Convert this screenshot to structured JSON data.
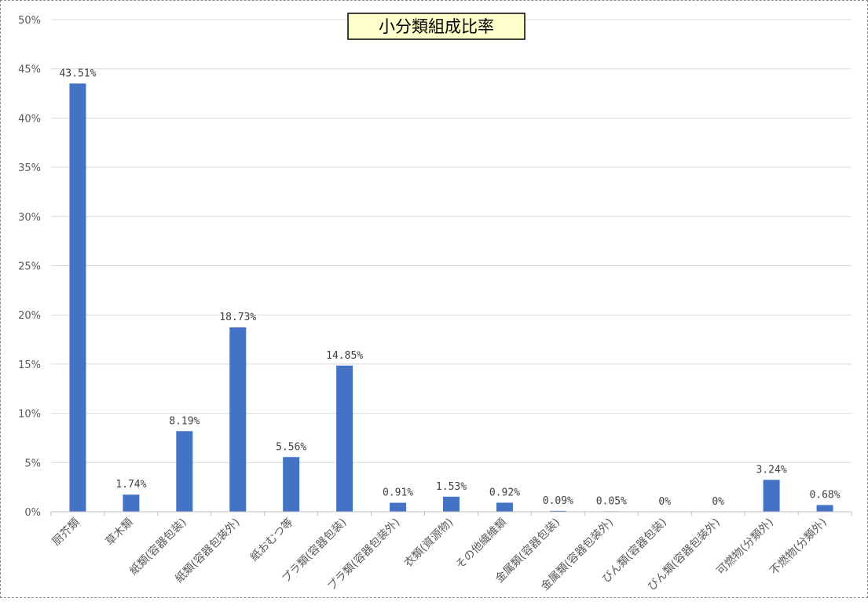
{
  "chart_data": {
    "type": "bar",
    "title": "小分類組成比率",
    "xlabel": "",
    "ylabel": "",
    "ylim": [
      0,
      50
    ],
    "y_ticks": [
      "0%",
      "5%",
      "10%",
      "15%",
      "20%",
      "25%",
      "30%",
      "35%",
      "40%",
      "45%",
      "50%"
    ],
    "grid": true,
    "legend": "none",
    "bar_color": "#4472c4",
    "categories": [
      "厨芥類",
      "草木類",
      "紙類(容器包装)",
      "紙類(容器包装外)",
      "紙おむつ等",
      "プラ類(容器包装)",
      "プラ類(容器包装外)",
      "衣類(資源物)",
      "その他繊維類",
      "金属類(容器包装)",
      "金属類(容器包装外)",
      "びん類(容器包装)",
      "びん類(容器包装外)",
      "可燃物(分類外)",
      "不燃物(分類外)"
    ],
    "values": [
      43.51,
      1.74,
      8.19,
      18.73,
      5.56,
      14.85,
      0.91,
      1.53,
      0.92,
      0.09,
      0.05,
      0,
      0,
      3.24,
      0.68
    ],
    "data_labels": [
      "43.51%",
      "1.74%",
      "8.19%",
      "18.73%",
      "5.56%",
      "14.85%",
      "0.91%",
      "1.53%",
      "0.92%",
      "0.09%",
      "0.05%",
      "0%",
      "0%",
      "3.24%",
      "0.68%"
    ]
  }
}
